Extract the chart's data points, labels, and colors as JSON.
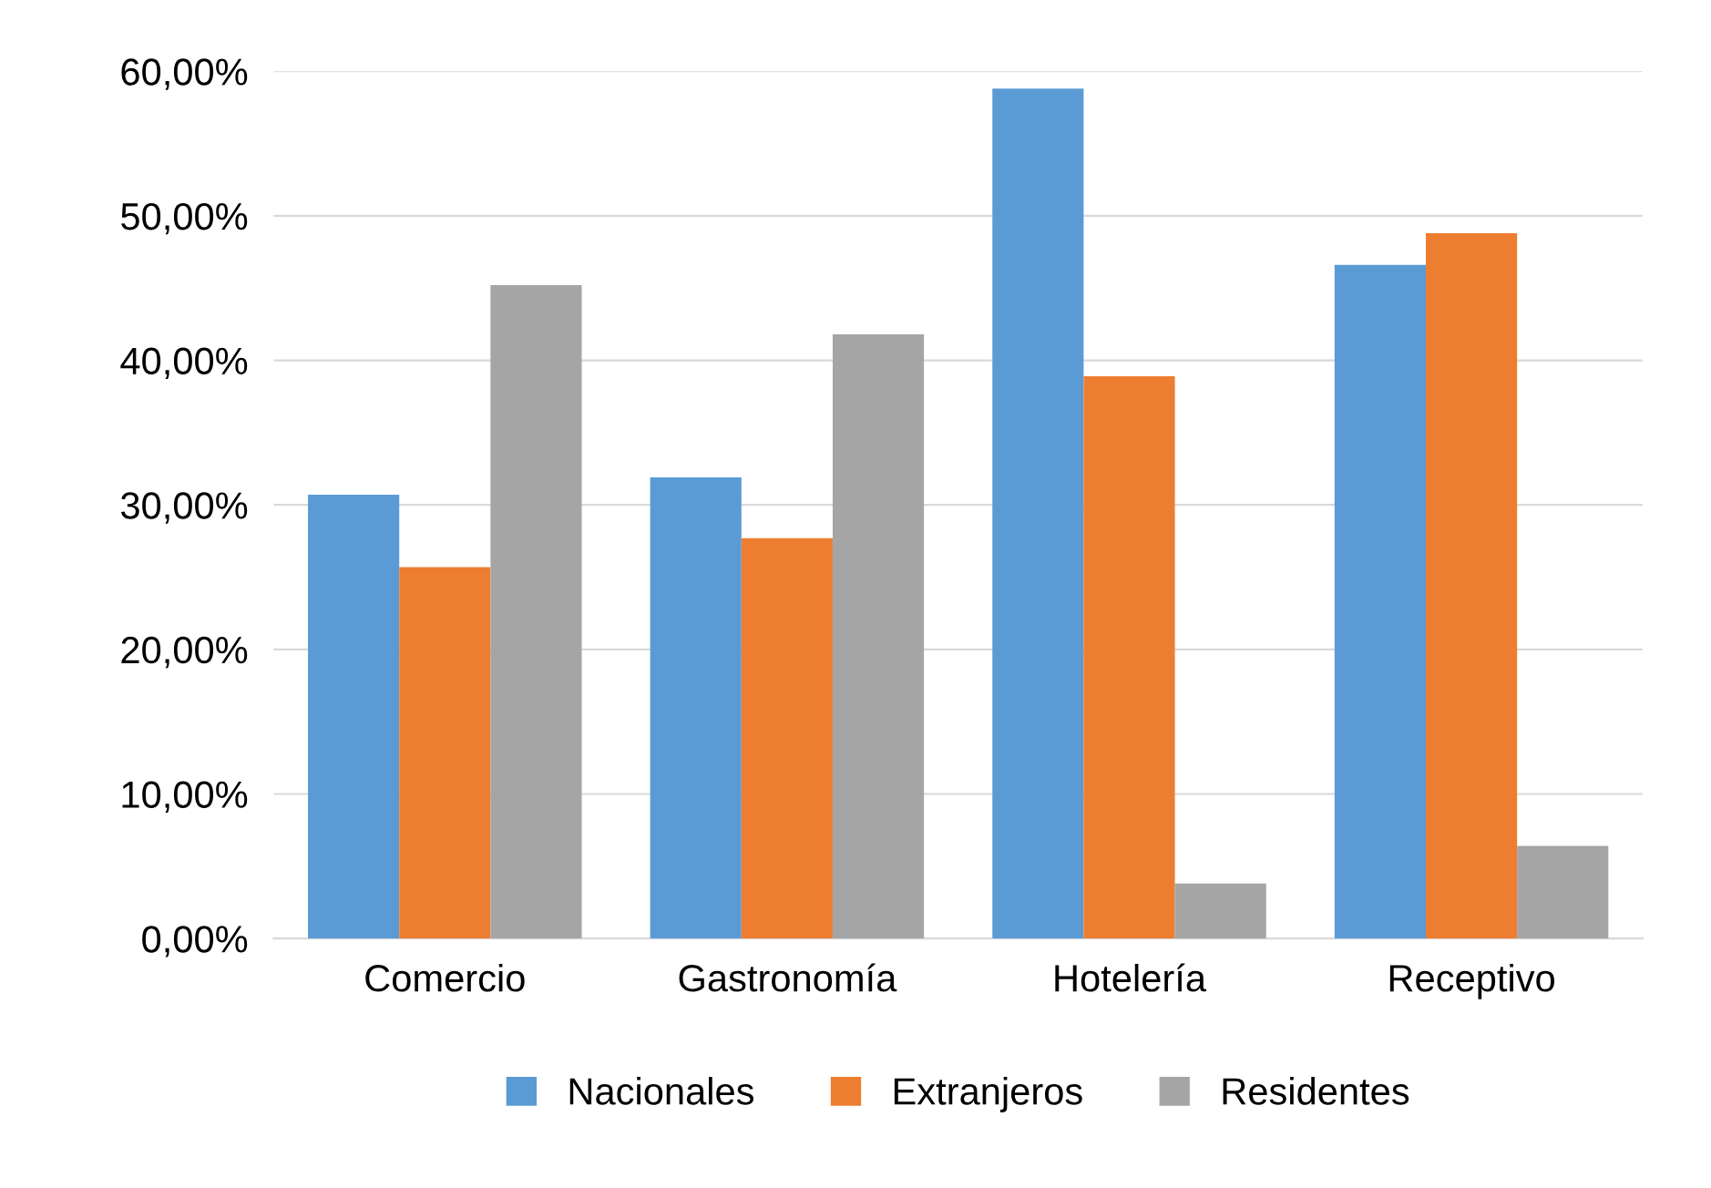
{
  "chart_data": {
    "type": "bar",
    "categories": [
      "Comercio",
      "Gastronomía",
      "Hotelería",
      "Receptivo"
    ],
    "series": [
      {
        "name": "Nacionales",
        "color": "#5b9bd5",
        "values": [
          30.7,
          31.9,
          58.8,
          46.6
        ]
      },
      {
        "name": "Extranjeros",
        "color": "#ed7d31",
        "values": [
          25.7,
          27.7,
          38.9,
          48.8
        ]
      },
      {
        "name": "Residentes",
        "color": "#a5a5a5",
        "values": [
          45.2,
          41.8,
          3.8,
          6.4
        ]
      }
    ],
    "ylim": [
      0,
      60
    ],
    "yticks": [
      {
        "value": 0,
        "label": "0,00%"
      },
      {
        "value": 10,
        "label": "10,00%"
      },
      {
        "value": 20,
        "label": "20,00%"
      },
      {
        "value": 30,
        "label": "30,00%"
      },
      {
        "value": 40,
        "label": "40,00%"
      },
      {
        "value": 50,
        "label": "50,00%"
      },
      {
        "value": 60,
        "label": "60,00%"
      }
    ],
    "grid": "y",
    "legend": "bottom"
  }
}
